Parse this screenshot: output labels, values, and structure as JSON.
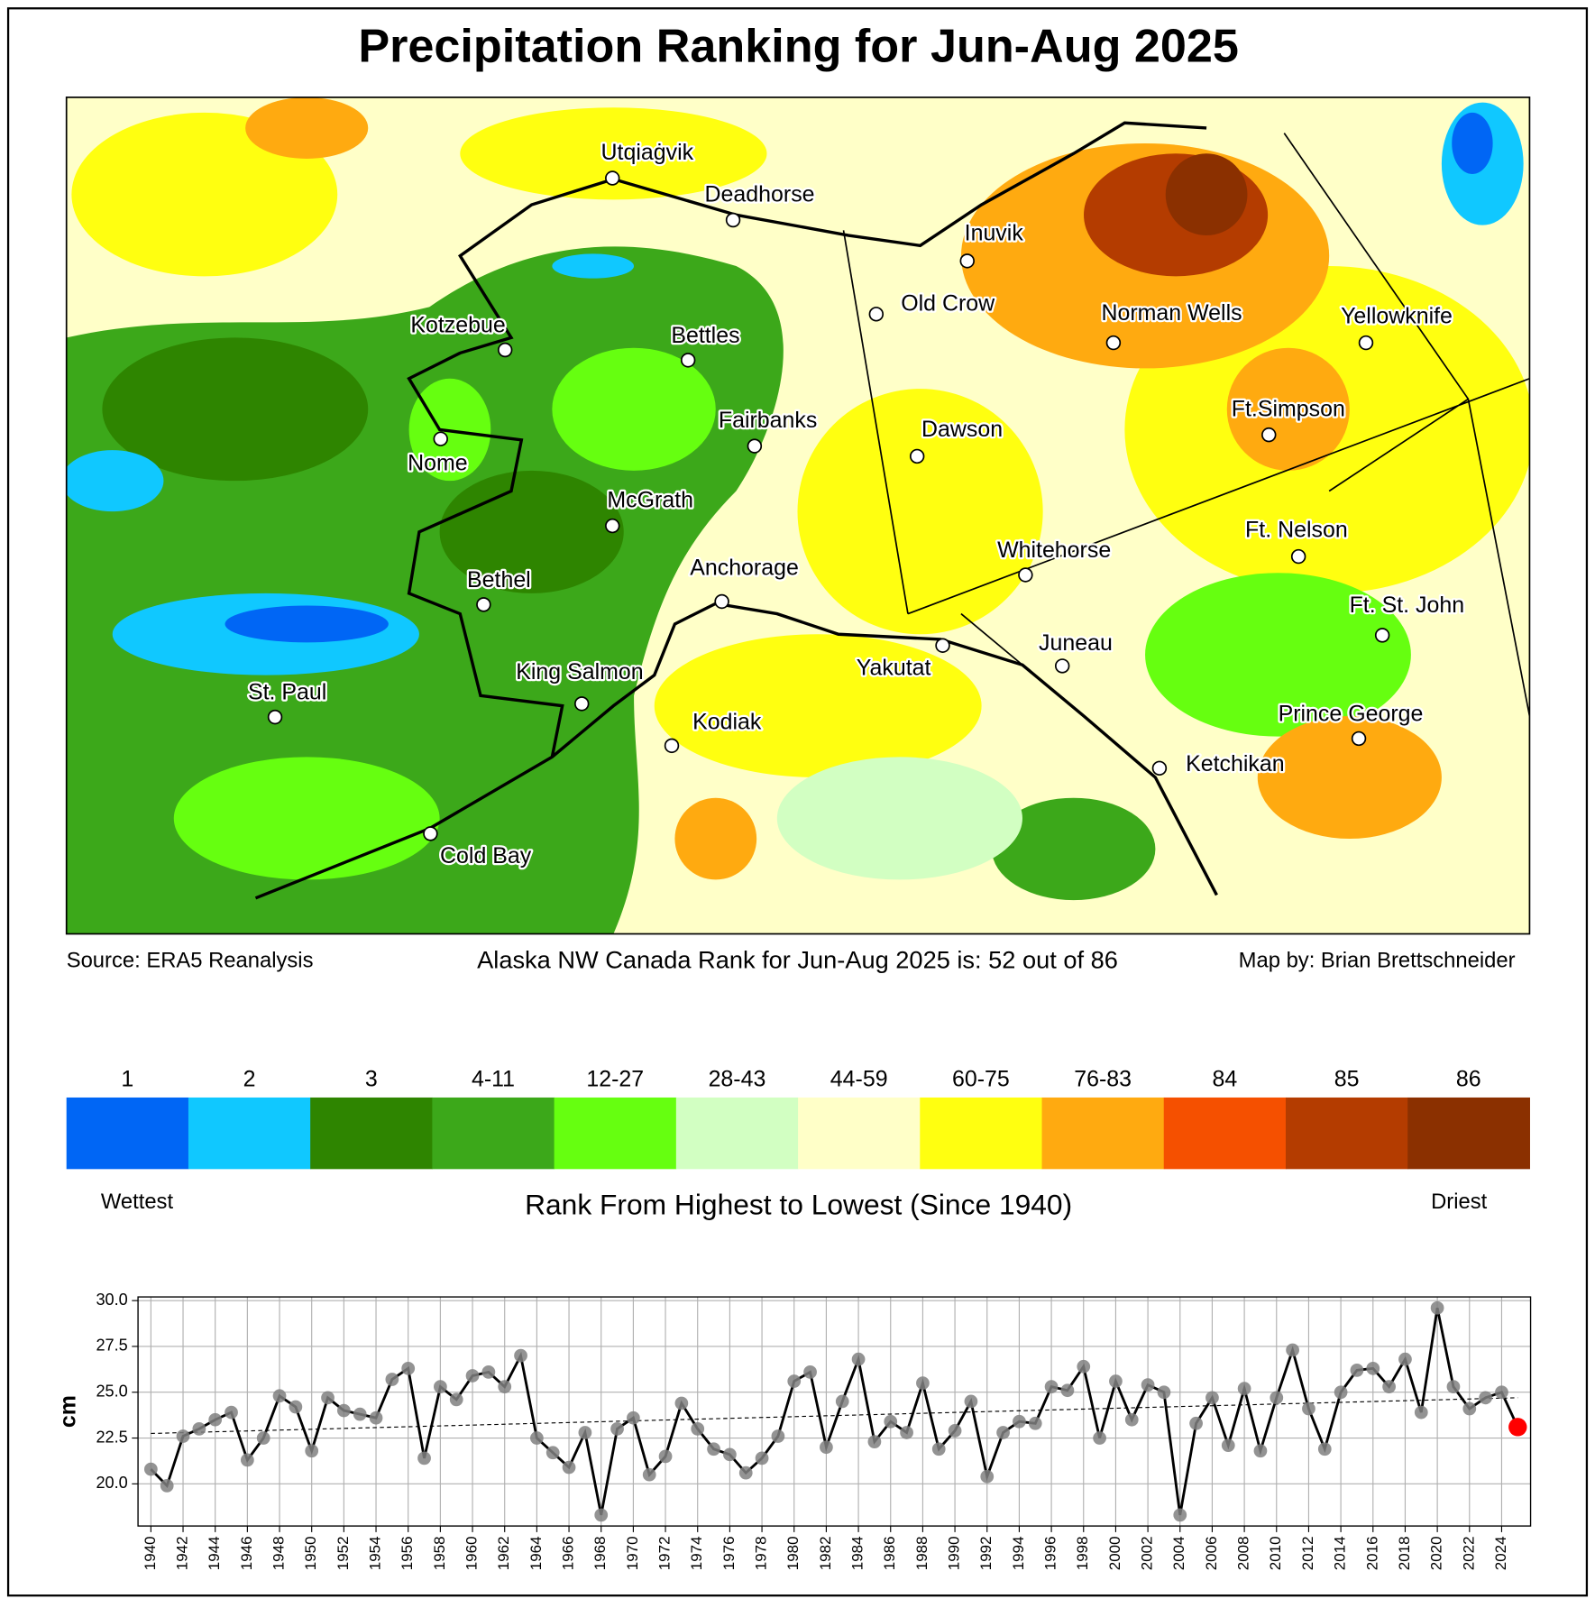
{
  "title": "Precipitation Ranking for Jun-Aug 2025",
  "map": {
    "cities": [
      "Utqiaġvik",
      "Deadhorse",
      "Inuvik",
      "Old Crow",
      "Norman Wells",
      "Yellowknife",
      "Kotzebue",
      "Bettles",
      "Fairbanks",
      "Dawson",
      "Ft.Simpson",
      "Nome",
      "McGrath",
      "Ft. Nelson",
      "Whitehorse",
      "Anchorage",
      "Bethel",
      "Ft. St. John",
      "Juneau",
      "Yakutat",
      "King Salmon",
      "St. Paul",
      "Kodiak",
      "Prince George",
      "Ketchikan",
      "Cold Bay"
    ]
  },
  "source": "Source: ERA5 Reanalysis",
  "rank_text": "Alaska NW Canada Rank for Jun-Aug 2025 is: 52 out of 86",
  "credit": "Map by: Brian Brettschneider",
  "legend": {
    "labels": [
      "1",
      "2",
      "3",
      "4-11",
      "12-27",
      "28-43",
      "44-59",
      "60-75",
      "76-83",
      "84",
      "85",
      "86"
    ],
    "colors": [
      "#0066f5",
      "#10c8ff",
      "#2e8500",
      "#3ca81a",
      "#66ff10",
      "#d2ffc2",
      "#ffffc8",
      "#ffff10",
      "#ffaa10",
      "#f55000",
      "#b43c00",
      "#8b3000"
    ],
    "low_label": "Wettest",
    "high_label": "Driest",
    "title": "Rank From Highest to Lowest (Since 1940)"
  },
  "chart_data": {
    "type": "line",
    "ylabel": "cm",
    "x": [
      1940,
      1941,
      1942,
      1943,
      1944,
      1945,
      1946,
      1947,
      1948,
      1949,
      1950,
      1951,
      1952,
      1953,
      1954,
      1955,
      1956,
      1957,
      1958,
      1959,
      1960,
      1961,
      1962,
      1963,
      1964,
      1965,
      1966,
      1967,
      1968,
      1969,
      1970,
      1971,
      1972,
      1973,
      1974,
      1975,
      1976,
      1977,
      1978,
      1979,
      1980,
      1981,
      1982,
      1983,
      1984,
      1985,
      1986,
      1987,
      1988,
      1989,
      1990,
      1991,
      1992,
      1993,
      1994,
      1995,
      1996,
      1997,
      1998,
      1999,
      2000,
      2001,
      2002,
      2003,
      2004,
      2005,
      2006,
      2007,
      2008,
      2009,
      2010,
      2011,
      2012,
      2013,
      2014,
      2015,
      2016,
      2017,
      2018,
      2019,
      2020,
      2021,
      2022,
      2023,
      2024,
      2025
    ],
    "values": [
      20.8,
      19.9,
      22.6,
      23.0,
      23.5,
      23.9,
      21.3,
      22.5,
      24.8,
      24.2,
      21.8,
      24.7,
      24.0,
      23.8,
      23.6,
      25.7,
      26.3,
      21.4,
      25.3,
      24.6,
      25.9,
      26.1,
      25.3,
      27.0,
      22.5,
      21.7,
      20.9,
      22.8,
      18.3,
      23.0,
      23.6,
      20.5,
      21.5,
      24.4,
      23.0,
      21.9,
      21.6,
      20.6,
      21.4,
      22.6,
      25.6,
      26.1,
      22.0,
      24.5,
      26.8,
      22.3,
      23.4,
      22.8,
      25.5,
      21.9,
      22.9,
      24.5,
      20.4,
      22.8,
      23.4,
      23.3,
      25.3,
      25.1,
      26.4,
      22.5,
      25.6,
      23.5,
      25.4,
      25.0,
      18.3,
      23.3,
      24.7,
      22.1,
      25.2,
      21.8,
      24.7,
      27.3,
      24.1,
      21.9,
      25.0,
      26.2,
      26.3,
      25.3,
      26.8,
      23.9,
      29.6,
      25.3,
      24.1,
      24.7,
      25.0,
      23.1
    ],
    "color": "#000000",
    "marker_color": "#808080",
    "highlight_color": "#ff0000",
    "trend": {
      "x": [
        1940,
        2025
      ],
      "values": [
        22.75,
        24.7
      ]
    },
    "xlim": [
      1939.2,
      2025.8
    ],
    "ylim": [
      17.7,
      30.2
    ],
    "xticks": [
      1940,
      1942,
      1944,
      1946,
      1948,
      1950,
      1952,
      1954,
      1956,
      1958,
      1960,
      1962,
      1964,
      1966,
      1968,
      1970,
      1972,
      1974,
      1976,
      1978,
      1980,
      1982,
      1984,
      1986,
      1988,
      1990,
      1992,
      1994,
      1996,
      1998,
      2000,
      2002,
      2004,
      2006,
      2008,
      2010,
      2012,
      2014,
      2016,
      2018,
      2020,
      2022,
      2024
    ],
    "yticks": [
      {
        "value": 20,
        "label": "20.0"
      },
      22.5,
      {
        "value": 25,
        "label": "25.0"
      },
      27.5,
      {
        "value": 30,
        "label": "30.0"
      }
    ],
    "grid": true
  }
}
